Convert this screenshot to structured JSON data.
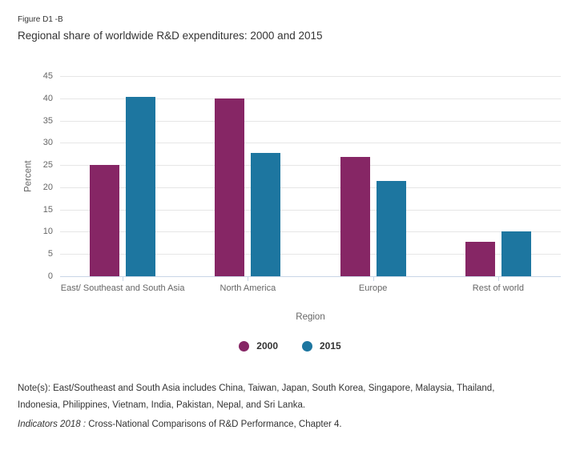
{
  "header": {
    "figure_label": "Figure D1 -B",
    "title": "Regional share of worldwide R&D expenditures: 2000 and 2015"
  },
  "chart_data": {
    "type": "bar",
    "categories": [
      "East/ Southeast and South Asia",
      "North America",
      "Europe",
      "Rest of world"
    ],
    "series": [
      {
        "name": "2000",
        "color": "#862665",
        "values": [
          25.1,
          39.9,
          26.8,
          7.7
        ]
      },
      {
        "name": "2015",
        "color": "#1d76a0",
        "values": [
          40.3,
          27.7,
          21.4,
          10.0
        ]
      }
    ],
    "title": "Regional share of worldwide R&D expenditures: 2000 and 2015",
    "xlabel": "Region",
    "ylabel": "Percent",
    "ylim": [
      0,
      45
    ],
    "yticks": [
      0,
      5,
      10,
      15,
      20,
      25,
      30,
      35,
      40,
      45
    ],
    "grid": true,
    "legend_position": "bottom"
  },
  "colors": {
    "series_2000": "#862665",
    "series_2015": "#1d76a0",
    "gridline": "#e6e6e6",
    "axis_line": "#c9d6e6",
    "tick_text": "#666666",
    "body_text": "#333333"
  },
  "notes": {
    "text": "Note(s): East/Southeast and South Asia includes China, Taiwan, Japan, South Korea, Singapore, Malaysia, Thailand, Indonesia, Philippines, Vietnam, India, Pakistan, Nepal, and Sri Lanka."
  },
  "source": {
    "italic": "Indicators 2018 :",
    "rest": " Cross-National Comparisons of R&D Performance, Chapter 4."
  }
}
